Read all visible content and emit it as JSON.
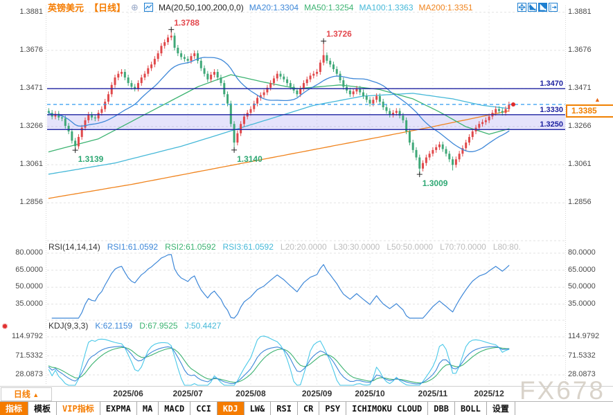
{
  "header": {
    "symbol": "英镑美元",
    "period": "【日线】",
    "ma_settings": "MA(20,50,100,200,0,0)",
    "ma20": "MA20:1.3304",
    "ma50": "MA50:1.3254",
    "ma100": "MA100:1.3363",
    "ma200": "MA200:1.3351",
    "colors": {
      "accent": "#f57c00",
      "ma20": "#3d87d8",
      "ma50": "#3cb371",
      "ma100": "#45b8d8",
      "ma200": "#f0841e"
    }
  },
  "top_right_icons": [
    "pan-icon",
    "axis-zoom-icon",
    "axis-scale-icon",
    "restore-icon"
  ],
  "rsi": {
    "title": "RSI(14,14,14)",
    "rsi1": "RSI1:61.0592",
    "rsi2": "RSI2:61.0592",
    "rsi3": "RSI3:61.0592",
    "l20": "L20:20.0000",
    "l30": "L30:30.0000",
    "l50": "L50:50.0000",
    "l70": "L70:70.0000",
    "l80": "L80:80."
  },
  "kdj": {
    "title": "KDJ(9,3,3)",
    "k": "K:62.1159",
    "d": "D:67.9525",
    "j": "J:50.4427"
  },
  "current_price": "1.3385",
  "current_arrow": "▲",
  "watermark": "FX678",
  "xaxis": {
    "period_label": "日线",
    "period_arrow": "▲"
  },
  "bottom_tabs": [
    {
      "label": "指标",
      "variant": "active"
    },
    {
      "label": "模板",
      "variant": "plain"
    },
    {
      "label": "VIP指标",
      "variant": "vip"
    },
    {
      "label": "EXPMA",
      "variant": "plain"
    },
    {
      "label": "MA",
      "variant": "plain"
    },
    {
      "label": "MACD",
      "variant": "plain"
    },
    {
      "label": "CCI",
      "variant": "plain"
    },
    {
      "label": "KDJ",
      "variant": "active"
    },
    {
      "label": "LW&",
      "variant": "plain"
    },
    {
      "label": "RSI",
      "variant": "plain"
    },
    {
      "label": "CR",
      "variant": "plain"
    },
    {
      "label": "PSY",
      "variant": "plain"
    },
    {
      "label": "ICHIMOKU CLOUD",
      "variant": "plain"
    },
    {
      "label": "DBB",
      "variant": "plain"
    },
    {
      "label": "BOLL",
      "variant": "plain"
    },
    {
      "label": "设置",
      "variant": "plain"
    }
  ],
  "chart_data": {
    "type": "candlestick",
    "title": "英镑美元 日线 (GBP/USD Daily)",
    "ylim": [
      1.2656,
      1.3917
    ],
    "y_ticks": [
      {
        "label": "1.3881",
        "value": 1.3881
      },
      {
        "label": "1.3676",
        "value": 1.3676
      },
      {
        "label": "1.3471",
        "value": 1.3471
      },
      {
        "label": "1.3266",
        "value": 1.3266
      },
      {
        "label": "1.3061",
        "value": 1.3061
      },
      {
        "label": "1.2856",
        "value": 1.2856
      }
    ],
    "levels": [
      {
        "label": "1.3470",
        "value": 1.347
      },
      {
        "label": "1.3330",
        "value": 1.333
      },
      {
        "label": "1.3250",
        "value": 1.325
      }
    ],
    "band": {
      "top": 1.333,
      "bottom": 1.325
    },
    "current": {
      "label": "1.3385",
      "value": 1.3385
    },
    "month_ticks": [
      {
        "label": "2025/06",
        "index": 24
      },
      {
        "label": "2025/07",
        "index": 42
      },
      {
        "label": "2025/08",
        "index": 61
      },
      {
        "label": "2025/09",
        "index": 81
      },
      {
        "label": "2025/10",
        "index": 97
      },
      {
        "label": "2025/11",
        "index": 116
      },
      {
        "label": "2025/12",
        "index": 133
      }
    ],
    "marked_points": [
      {
        "index": 8,
        "label": "1.3139",
        "value": 1.3139,
        "type": "low"
      },
      {
        "index": 37,
        "label": "1.3788",
        "value": 1.3788,
        "type": "high"
      },
      {
        "index": 56,
        "label": "1.3140",
        "value": 1.314,
        "type": "low"
      },
      {
        "index": 83,
        "label": "1.3726",
        "value": 1.3726,
        "type": "high"
      },
      {
        "index": 112,
        "label": "1.3009",
        "value": 1.3009,
        "type": "low"
      }
    ],
    "ma": {
      "ma20_period": 20,
      "ma50_anchors": [
        [
          0,
          1.313
        ],
        [
          15,
          1.32
        ],
        [
          30,
          1.334
        ],
        [
          45,
          1.348
        ],
        [
          55,
          1.3545
        ],
        [
          65,
          1.3505
        ],
        [
          75,
          1.347
        ],
        [
          88,
          1.349
        ],
        [
          100,
          1.3465
        ],
        [
          110,
          1.3415
        ],
        [
          118,
          1.3345
        ],
        [
          126,
          1.3265
        ],
        [
          133,
          1.3225
        ],
        [
          139,
          1.3254
        ]
      ],
      "ma100_anchors": [
        [
          0,
          1.301
        ],
        [
          20,
          1.307
        ],
        [
          40,
          1.316
        ],
        [
          60,
          1.327
        ],
        [
          80,
          1.338
        ],
        [
          95,
          1.343
        ],
        [
          110,
          1.3445
        ],
        [
          122,
          1.3415
        ],
        [
          131,
          1.338
        ],
        [
          139,
          1.3363
        ]
      ],
      "ma200_anchors": [
        [
          0,
          1.288
        ],
        [
          25,
          1.2955
        ],
        [
          50,
          1.304
        ],
        [
          75,
          1.3125
        ],
        [
          100,
          1.321
        ],
        [
          115,
          1.3262
        ],
        [
          128,
          1.331
        ],
        [
          139,
          1.3351
        ]
      ]
    },
    "rsi": {
      "period": 14,
      "grid": [
        {
          "label": "80.0000",
          "value": 80
        },
        {
          "label": "65.0000",
          "value": 65
        },
        {
          "label": "50.0000",
          "value": 50
        },
        {
          "label": "35.0000",
          "value": 35
        }
      ],
      "last": 61.0592
    },
    "kdj": {
      "params": [
        9,
        3,
        3
      ],
      "grid": [
        {
          "label": "114.9792",
          "value": 114.9792
        },
        {
          "label": "71.5332",
          "value": 71.5332
        },
        {
          "label": "28.0873",
          "value": 28.0873
        }
      ],
      "last": {
        "k": 62.1159,
        "d": 67.9525,
        "j": 50.4427
      }
    },
    "candles": [
      [
        1.335,
        1.3365,
        1.3325,
        1.334
      ],
      [
        1.334,
        1.3355,
        1.3305,
        1.332
      ],
      [
        1.332,
        1.335,
        1.3305,
        1.3335
      ],
      [
        1.3335,
        1.335,
        1.33,
        1.3315
      ],
      [
        1.3315,
        1.333,
        1.3295,
        1.331
      ],
      [
        1.331,
        1.3325,
        1.3255,
        1.327
      ],
      [
        1.327,
        1.3285,
        1.3225,
        1.324
      ],
      [
        1.324,
        1.3255,
        1.3175,
        1.319
      ],
      [
        1.319,
        1.3205,
        1.3139,
        1.316
      ],
      [
        1.316,
        1.3225,
        1.3145,
        1.321
      ],
      [
        1.321,
        1.3275,
        1.3195,
        1.326
      ],
      [
        1.326,
        1.3315,
        1.3245,
        1.33
      ],
      [
        1.33,
        1.3345,
        1.3285,
        1.333
      ],
      [
        1.333,
        1.3345,
        1.33,
        1.3315
      ],
      [
        1.3315,
        1.333,
        1.3295,
        1.331
      ],
      [
        1.331,
        1.3355,
        1.3295,
        1.334
      ],
      [
        1.334,
        1.3375,
        1.3325,
        1.336
      ],
      [
        1.336,
        1.3415,
        1.3345,
        1.34
      ],
      [
        1.34,
        1.3455,
        1.3385,
        1.344
      ],
      [
        1.344,
        1.3505,
        1.3425,
        1.349
      ],
      [
        1.349,
        1.3545,
        1.3475,
        1.353
      ],
      [
        1.353,
        1.3565,
        1.3515,
        1.355
      ],
      [
        1.355,
        1.3575,
        1.3535,
        1.356
      ],
      [
        1.356,
        1.3575,
        1.3515,
        1.353
      ],
      [
        1.353,
        1.3545,
        1.3485,
        1.35
      ],
      [
        1.35,
        1.3515,
        1.3465,
        1.348
      ],
      [
        1.348,
        1.3495,
        1.3455,
        1.347
      ],
      [
        1.347,
        1.3515,
        1.3455,
        1.35
      ],
      [
        1.35,
        1.3545,
        1.3485,
        1.353
      ],
      [
        1.353,
        1.3565,
        1.3515,
        1.355
      ],
      [
        1.355,
        1.3595,
        1.3535,
        1.358
      ],
      [
        1.358,
        1.3615,
        1.3565,
        1.36
      ],
      [
        1.36,
        1.3645,
        1.3585,
        1.363
      ],
      [
        1.363,
        1.3675,
        1.3615,
        1.366
      ],
      [
        1.366,
        1.3715,
        1.3645,
        1.37
      ],
      [
        1.37,
        1.3735,
        1.3685,
        1.372
      ],
      [
        1.372,
        1.376,
        1.3705,
        1.3745
      ],
      [
        1.3745,
        1.3788,
        1.373,
        1.3755
      ],
      [
        1.3755,
        1.377,
        1.3675,
        1.369
      ],
      [
        1.369,
        1.3705,
        1.3645,
        1.366
      ],
      [
        1.366,
        1.3675,
        1.3625,
        1.364
      ],
      [
        1.364,
        1.3655,
        1.3615,
        1.363
      ],
      [
        1.363,
        1.3645,
        1.3605,
        1.362
      ],
      [
        1.362,
        1.366,
        1.3605,
        1.3645
      ],
      [
        1.3645,
        1.3675,
        1.363,
        1.366
      ],
      [
        1.366,
        1.3675,
        1.3605,
        1.362
      ],
      [
        1.362,
        1.3635,
        1.3565,
        1.358
      ],
      [
        1.358,
        1.3595,
        1.3535,
        1.355
      ],
      [
        1.355,
        1.3565,
        1.3505,
        1.352
      ],
      [
        1.352,
        1.356,
        1.3505,
        1.3545
      ],
      [
        1.3545,
        1.3575,
        1.353,
        1.356
      ],
      [
        1.356,
        1.3575,
        1.3515,
        1.353
      ],
      [
        1.353,
        1.3545,
        1.3485,
        1.35
      ],
      [
        1.35,
        1.3515,
        1.3425,
        1.344
      ],
      [
        1.344,
        1.3455,
        1.3375,
        1.339
      ],
      [
        1.339,
        1.3405,
        1.3265,
        1.328
      ],
      [
        1.328,
        1.3295,
        1.314,
        1.318
      ],
      [
        1.318,
        1.3245,
        1.3165,
        1.323
      ],
      [
        1.323,
        1.3295,
        1.3215,
        1.328
      ],
      [
        1.328,
        1.3335,
        1.3265,
        1.332
      ],
      [
        1.332,
        1.3355,
        1.3305,
        1.334
      ],
      [
        1.334,
        1.3375,
        1.3325,
        1.336
      ],
      [
        1.336,
        1.3405,
        1.3345,
        1.339
      ],
      [
        1.339,
        1.3435,
        1.3375,
        1.342
      ],
      [
        1.342,
        1.345,
        1.3405,
        1.3435
      ],
      [
        1.3435,
        1.3465,
        1.342,
        1.345
      ],
      [
        1.345,
        1.349,
        1.3435,
        1.3475
      ],
      [
        1.3475,
        1.3515,
        1.346,
        1.35
      ],
      [
        1.35,
        1.354,
        1.3485,
        1.3525
      ],
      [
        1.3525,
        1.3565,
        1.351,
        1.355
      ],
      [
        1.355,
        1.3565,
        1.352,
        1.3535
      ],
      [
        1.3535,
        1.355,
        1.3505,
        1.352
      ],
      [
        1.352,
        1.3535,
        1.3485,
        1.35
      ],
      [
        1.35,
        1.3515,
        1.3465,
        1.348
      ],
      [
        1.348,
        1.3495,
        1.3445,
        1.346
      ],
      [
        1.346,
        1.3475,
        1.3425,
        1.344
      ],
      [
        1.344,
        1.3485,
        1.3425,
        1.347
      ],
      [
        1.347,
        1.3515,
        1.3455,
        1.35
      ],
      [
        1.35,
        1.3535,
        1.3485,
        1.352
      ],
      [
        1.352,
        1.3555,
        1.3505,
        1.354
      ],
      [
        1.354,
        1.3565,
        1.3525,
        1.355
      ],
      [
        1.355,
        1.3575,
        1.3535,
        1.356
      ],
      [
        1.356,
        1.3625,
        1.3545,
        1.361
      ],
      [
        1.361,
        1.3726,
        1.3595,
        1.365
      ],
      [
        1.365,
        1.3665,
        1.3605,
        1.362
      ],
      [
        1.362,
        1.3635,
        1.3585,
        1.36
      ],
      [
        1.36,
        1.3615,
        1.356,
        1.3575
      ],
      [
        1.3575,
        1.359,
        1.3535,
        1.355
      ],
      [
        1.355,
        1.3565,
        1.35,
        1.3515
      ],
      [
        1.3515,
        1.353,
        1.3465,
        1.348
      ],
      [
        1.348,
        1.3495,
        1.3445,
        1.346
      ],
      [
        1.346,
        1.3475,
        1.3425,
        1.344
      ],
      [
        1.344,
        1.347,
        1.3425,
        1.3455
      ],
      [
        1.3455,
        1.3485,
        1.344,
        1.347
      ],
      [
        1.347,
        1.3485,
        1.3435,
        1.345
      ],
      [
        1.345,
        1.3465,
        1.3415,
        1.343
      ],
      [
        1.343,
        1.3445,
        1.3395,
        1.341
      ],
      [
        1.341,
        1.3425,
        1.3375,
        1.339
      ],
      [
        1.339,
        1.3425,
        1.3375,
        1.341
      ],
      [
        1.341,
        1.3445,
        1.3395,
        1.343
      ],
      [
        1.343,
        1.3445,
        1.3385,
        1.34
      ],
      [
        1.34,
        1.3415,
        1.3355,
        1.337
      ],
      [
        1.337,
        1.3385,
        1.3335,
        1.335
      ],
      [
        1.335,
        1.3365,
        1.3315,
        1.333
      ],
      [
        1.333,
        1.3355,
        1.3315,
        1.334
      ],
      [
        1.334,
        1.3365,
        1.3325,
        1.335
      ],
      [
        1.335,
        1.3365,
        1.331,
        1.3325
      ],
      [
        1.3325,
        1.334,
        1.3285,
        1.33
      ],
      [
        1.33,
        1.3315,
        1.3225,
        1.324
      ],
      [
        1.324,
        1.3255,
        1.3165,
        1.318
      ],
      [
        1.318,
        1.3195,
        1.3125,
        1.314
      ],
      [
        1.314,
        1.3155,
        1.3085,
        1.31
      ],
      [
        1.31,
        1.3115,
        1.3009,
        1.304
      ],
      [
        1.304,
        1.3085,
        1.3025,
        1.307
      ],
      [
        1.307,
        1.3115,
        1.3055,
        1.31
      ],
      [
        1.31,
        1.3135,
        1.3085,
        1.312
      ],
      [
        1.312,
        1.3155,
        1.3105,
        1.314
      ],
      [
        1.314,
        1.317,
        1.3125,
        1.3155
      ],
      [
        1.3155,
        1.3185,
        1.314,
        1.317
      ],
      [
        1.317,
        1.3185,
        1.313,
        1.3145
      ],
      [
        1.3145,
        1.316,
        1.3105,
        1.312
      ],
      [
        1.312,
        1.3135,
        1.3075,
        1.309
      ],
      [
        1.309,
        1.3105,
        1.303,
        1.306
      ],
      [
        1.306,
        1.3105,
        1.3045,
        1.309
      ],
      [
        1.309,
        1.3135,
        1.3075,
        1.312
      ],
      [
        1.312,
        1.3165,
        1.3105,
        1.315
      ],
      [
        1.315,
        1.3195,
        1.3135,
        1.318
      ],
      [
        1.318,
        1.3225,
        1.3165,
        1.321
      ],
      [
        1.321,
        1.3255,
        1.3195,
        1.324
      ],
      [
        1.324,
        1.3275,
        1.3225,
        1.326
      ],
      [
        1.326,
        1.3295,
        1.3245,
        1.328
      ],
      [
        1.328,
        1.3305,
        1.3265,
        1.329
      ],
      [
        1.329,
        1.3315,
        1.3275,
        1.33
      ],
      [
        1.33,
        1.3335,
        1.3285,
        1.332
      ],
      [
        1.332,
        1.3355,
        1.3305,
        1.334
      ],
      [
        1.334,
        1.3375,
        1.3325,
        1.336
      ],
      [
        1.336,
        1.3375,
        1.3335,
        1.335
      ],
      [
        1.335,
        1.3365,
        1.3325,
        1.334
      ],
      [
        1.334,
        1.3375,
        1.3325,
        1.336
      ],
      [
        1.336,
        1.34,
        1.3345,
        1.3385
      ]
    ]
  }
}
